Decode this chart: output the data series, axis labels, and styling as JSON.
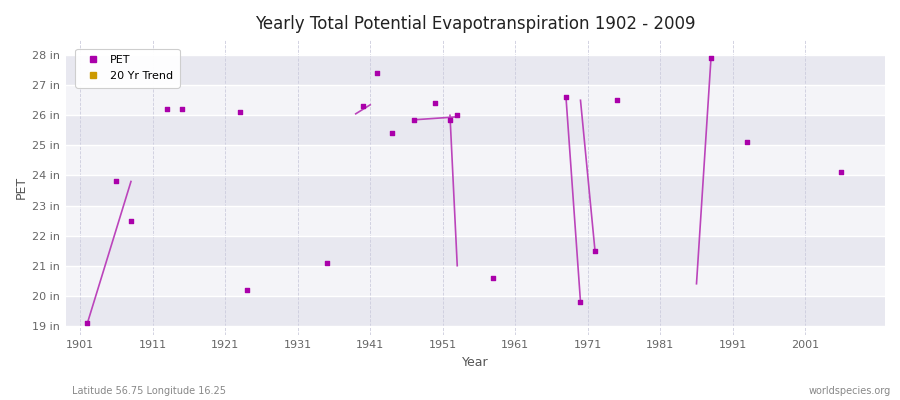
{
  "title": "Yearly Total Potential Evapotranspiration 1902 - 2009",
  "xlabel": "Year",
  "ylabel": "PET",
  "footnote_left": "Latitude 56.75 Longitude 16.25",
  "footnote_right": "worldspecies.org",
  "ylim": [
    18.7,
    28.5
  ],
  "yticks": [
    19,
    20,
    21,
    22,
    23,
    24,
    25,
    26,
    27,
    28
  ],
  "ytick_labels": [
    "19 in",
    "20 in",
    "21 in",
    "22 in",
    "23 in",
    "24 in",
    "25 in",
    "26 in",
    "27 in",
    "28 in"
  ],
  "xlim": [
    1899,
    2012
  ],
  "xticks": [
    1901,
    1911,
    1921,
    1931,
    1941,
    1951,
    1961,
    1971,
    1981,
    1991,
    2001
  ],
  "pet_color": "#aa00aa",
  "trend_color": "#bb44bb",
  "legend_pet_color": "#aa00aa",
  "legend_trend_color": "#cc9900",
  "background_color": "#ffffff",
  "band_color_dark": "#e8e8f0",
  "band_color_light": "#f4f4f8",
  "pet_data": [
    [
      1902,
      19.1
    ],
    [
      1906,
      23.8
    ],
    [
      1908,
      22.5
    ],
    [
      1913,
      26.2
    ],
    [
      1915,
      26.2
    ],
    [
      1923,
      26.1
    ],
    [
      1924,
      20.2
    ],
    [
      1935,
      21.1
    ],
    [
      1940,
      26.3
    ],
    [
      1942,
      27.4
    ],
    [
      1944,
      25.4
    ],
    [
      1947,
      25.85
    ],
    [
      1950,
      26.4
    ],
    [
      1952,
      25.85
    ],
    [
      1953,
      26.0
    ],
    [
      1958,
      20.6
    ],
    [
      1968,
      26.6
    ],
    [
      1970,
      19.8
    ],
    [
      1972,
      21.5
    ],
    [
      1975,
      26.5
    ],
    [
      1988,
      27.9
    ],
    [
      1993,
      25.1
    ],
    [
      2006,
      24.1
    ]
  ],
  "trend_segments": [
    [
      [
        1902,
        19.1
      ],
      [
        1908,
        23.8
      ]
    ],
    [
      [
        1939,
        26.05
      ],
      [
        1941,
        26.35
      ]
    ],
    [
      [
        1947,
        25.85
      ],
      [
        1953,
        25.95
      ]
    ],
    [
      [
        1952,
        26.0
      ],
      [
        1953,
        21.0
      ]
    ],
    [
      [
        1968,
        26.6
      ],
      [
        1970,
        19.8
      ]
    ],
    [
      [
        1970,
        26.5
      ],
      [
        1972,
        21.5
      ]
    ],
    [
      [
        1986,
        20.4
      ],
      [
        1988,
        27.9
      ]
    ]
  ]
}
